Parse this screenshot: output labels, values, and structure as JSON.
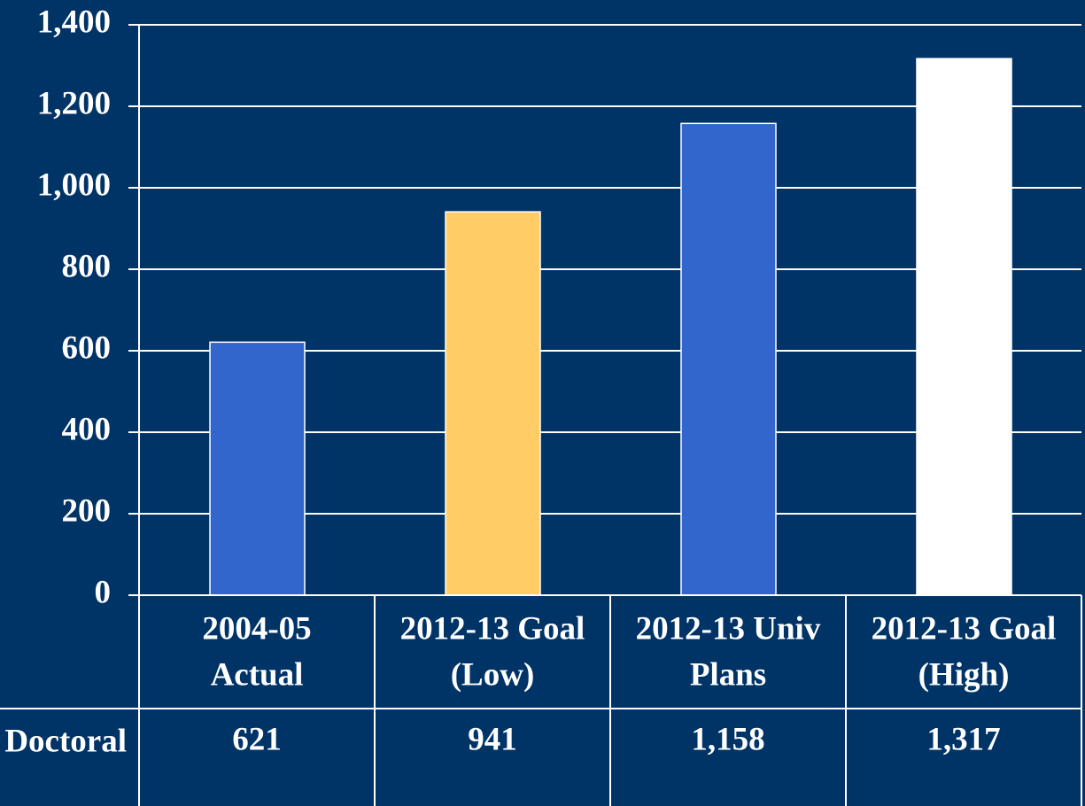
{
  "chart_data": {
    "type": "bar",
    "categories": [
      [
        "2004-05",
        "Actual"
      ],
      [
        "2012-13 Goal",
        "(Low)"
      ],
      [
        "2012-13 Univ",
        "Plans"
      ],
      [
        "2012-13 Goal",
        "(High)"
      ]
    ],
    "series": [
      {
        "name": "Doctoral",
        "values": [
          621,
          941,
          1158,
          1317
        ],
        "value_labels": [
          "621",
          "941",
          "1,158",
          "1,317"
        ],
        "colors": [
          "#3366cc",
          "#ffcc66",
          "#3366cc",
          "#ffffff"
        ]
      }
    ],
    "ylim": [
      0,
      1400
    ],
    "yticks": [
      0,
      200,
      400,
      600,
      800,
      {
        "value": 1000,
        "label": "1,000"
      },
      {
        "value": 1200,
        "label": "1,200"
      },
      {
        "value": 1400,
        "label": "1,400"
      }
    ],
    "grid": true
  }
}
